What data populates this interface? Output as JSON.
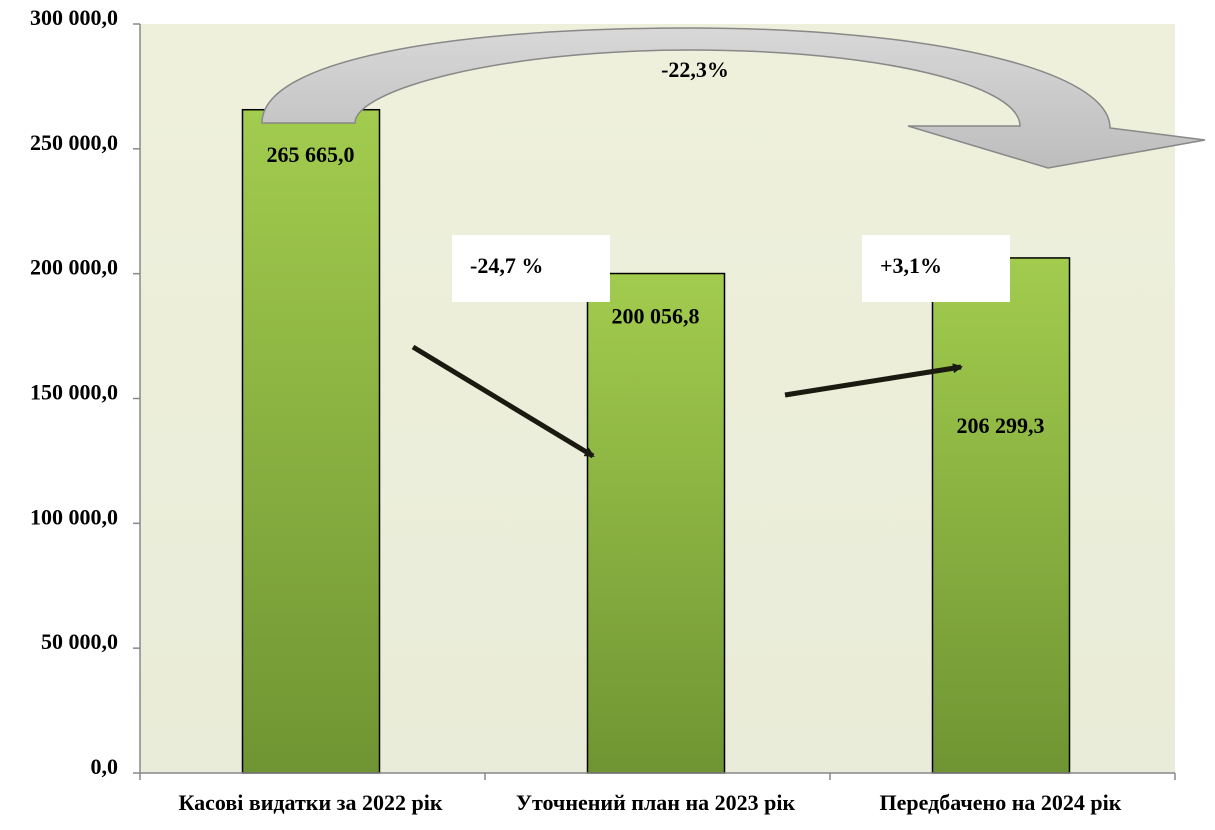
{
  "chart_data": {
    "type": "bar",
    "categories": [
      "Касові видатки за 2022 рік",
      "Уточнений план на 2023 рік",
      "Передбачено на 2024 рік"
    ],
    "values": [
      265665.0,
      200056.8,
      206299.3
    ],
    "value_labels": [
      "265 665,0",
      "200 056,8",
      "206 299,3"
    ],
    "color": "#8db443",
    "ylim": [
      0,
      300000
    ],
    "yticks": [
      {
        "value": 0,
        "label": "0,0"
      },
      {
        "value": 50000,
        "label": "50 000,0"
      },
      {
        "value": 100000,
        "label": "100 000,0"
      },
      {
        "value": 150000,
        "label": "150 000,0"
      },
      {
        "value": 200000,
        "label": "200 000,0"
      },
      {
        "value": 250000,
        "label": "250 000,0"
      },
      {
        "value": 300000,
        "label": "300 000,0"
      }
    ],
    "annotations": [
      "-22,3%",
      "-24,7 %",
      "+3,1%"
    ]
  }
}
